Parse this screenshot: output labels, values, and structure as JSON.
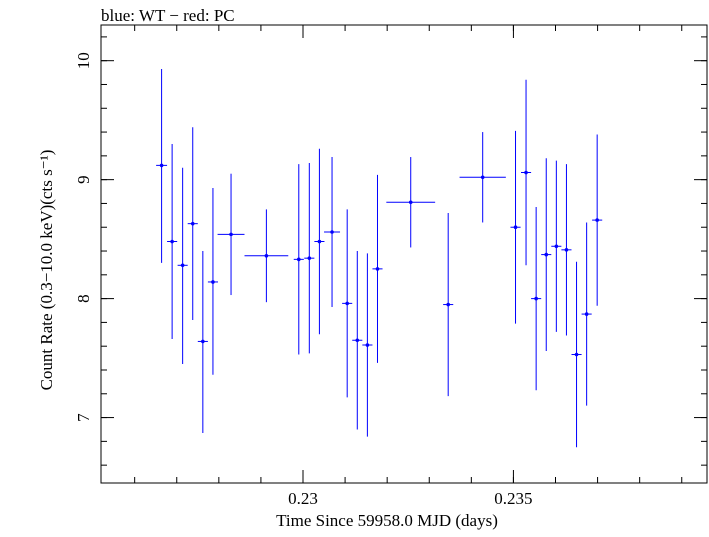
{
  "chart_data": {
    "type": "scatter",
    "title": "blue: WT − red: PC",
    "xlabel": "Time Since 59958.0 MJD (days)",
    "ylabel": "Count Rate (0.3−10.0 keV)(cts s⁻¹)",
    "xlim": [
      0.2252,
      0.2396
    ],
    "ylim": [
      6.45,
      10.3
    ],
    "x_ticks": [
      {
        "value": 0.23,
        "label": "0.23"
      },
      {
        "value": 0.235,
        "label": "0.235"
      }
    ],
    "y_ticks": [
      {
        "value": 7,
        "label": "7"
      },
      {
        "value": 8,
        "label": "8"
      },
      {
        "value": 9,
        "label": "9"
      },
      {
        "value": 10,
        "label": "10"
      }
    ],
    "x_minor_step": 0.001,
    "y_minor_step": 0.2,
    "grid": false,
    "series": [
      {
        "name": "WT",
        "color": "#0000ff",
        "points": [
          {
            "x": 0.22664,
            "y": 9.12,
            "xerr": 0.00013,
            "yerr_lo": 0.82,
            "yerr_hi": 0.81
          },
          {
            "x": 0.22689,
            "y": 8.48,
            "xerr": 0.00012,
            "yerr_lo": 0.82,
            "yerr_hi": 0.82
          },
          {
            "x": 0.22714,
            "y": 8.28,
            "xerr": 0.00012,
            "yerr_lo": 0.83,
            "yerr_hi": 0.82
          },
          {
            "x": 0.22738,
            "y": 8.63,
            "xerr": 0.00012,
            "yerr_lo": 0.81,
            "yerr_hi": 0.81
          },
          {
            "x": 0.22762,
            "y": 7.64,
            "xerr": 0.00012,
            "yerr_lo": 0.77,
            "yerr_hi": 0.76
          },
          {
            "x": 0.22786,
            "y": 8.14,
            "xerr": 0.00012,
            "yerr_lo": 0.78,
            "yerr_hi": 0.79
          },
          {
            "x": 0.22829,
            "y": 8.54,
            "xerr": 0.00032,
            "yerr_lo": 0.51,
            "yerr_hi": 0.51
          },
          {
            "x": 0.22913,
            "y": 8.36,
            "xerr": 0.00052,
            "yerr_lo": 0.39,
            "yerr_hi": 0.39
          },
          {
            "x": 0.2299,
            "y": 8.33,
            "xerr": 0.00012,
            "yerr_lo": 0.8,
            "yerr_hi": 0.8
          },
          {
            "x": 0.23015,
            "y": 8.34,
            "xerr": 0.00012,
            "yerr_lo": 0.8,
            "yerr_hi": 0.8
          },
          {
            "x": 0.23039,
            "y": 8.48,
            "xerr": 0.00012,
            "yerr_lo": 0.78,
            "yerr_hi": 0.78
          },
          {
            "x": 0.23069,
            "y": 8.56,
            "xerr": 0.00019,
            "yerr_lo": 0.63,
            "yerr_hi": 0.63
          },
          {
            "x": 0.23105,
            "y": 7.96,
            "xerr": 0.00012,
            "yerr_lo": 0.79,
            "yerr_hi": 0.79
          },
          {
            "x": 0.23129,
            "y": 7.65,
            "xerr": 0.00012,
            "yerr_lo": 0.75,
            "yerr_hi": 0.75
          },
          {
            "x": 0.23153,
            "y": 7.61,
            "xerr": 0.00012,
            "yerr_lo": 0.77,
            "yerr_hi": 0.77
          },
          {
            "x": 0.23177,
            "y": 8.25,
            "xerr": 0.00012,
            "yerr_lo": 0.79,
            "yerr_hi": 0.79
          },
          {
            "x": 0.23256,
            "y": 8.81,
            "xerr": 0.00058,
            "yerr_lo": 0.38,
            "yerr_hi": 0.38
          },
          {
            "x": 0.23345,
            "y": 7.95,
            "xerr": 0.00012,
            "yerr_lo": 0.77,
            "yerr_hi": 0.77
          },
          {
            "x": 0.23427,
            "y": 9.02,
            "xerr": 0.00055,
            "yerr_lo": 0.38,
            "yerr_hi": 0.38
          },
          {
            "x": 0.23505,
            "y": 8.6,
            "xerr": 0.00012,
            "yerr_lo": 0.81,
            "yerr_hi": 0.81
          },
          {
            "x": 0.2353,
            "y": 9.06,
            "xerr": 0.00012,
            "yerr_lo": 0.78,
            "yerr_hi": 0.78
          },
          {
            "x": 0.23554,
            "y": 8.0,
            "xerr": 0.00012,
            "yerr_lo": 0.77,
            "yerr_hi": 0.77
          },
          {
            "x": 0.23578,
            "y": 8.37,
            "xerr": 0.00012,
            "yerr_lo": 0.81,
            "yerr_hi": 0.81
          },
          {
            "x": 0.23602,
            "y": 8.44,
            "xerr": 0.00012,
            "yerr_lo": 0.72,
            "yerr_hi": 0.72
          },
          {
            "x": 0.23626,
            "y": 8.41,
            "xerr": 0.00012,
            "yerr_lo": 0.72,
            "yerr_hi": 0.72
          },
          {
            "x": 0.2365,
            "y": 7.53,
            "xerr": 0.00012,
            "yerr_lo": 0.78,
            "yerr_hi": 0.78
          },
          {
            "x": 0.23674,
            "y": 7.87,
            "xerr": 0.00012,
            "yerr_lo": 0.77,
            "yerr_hi": 0.77
          },
          {
            "x": 0.23699,
            "y": 8.66,
            "xerr": 0.00012,
            "yerr_lo": 0.72,
            "yerr_hi": 0.72
          }
        ]
      }
    ]
  }
}
